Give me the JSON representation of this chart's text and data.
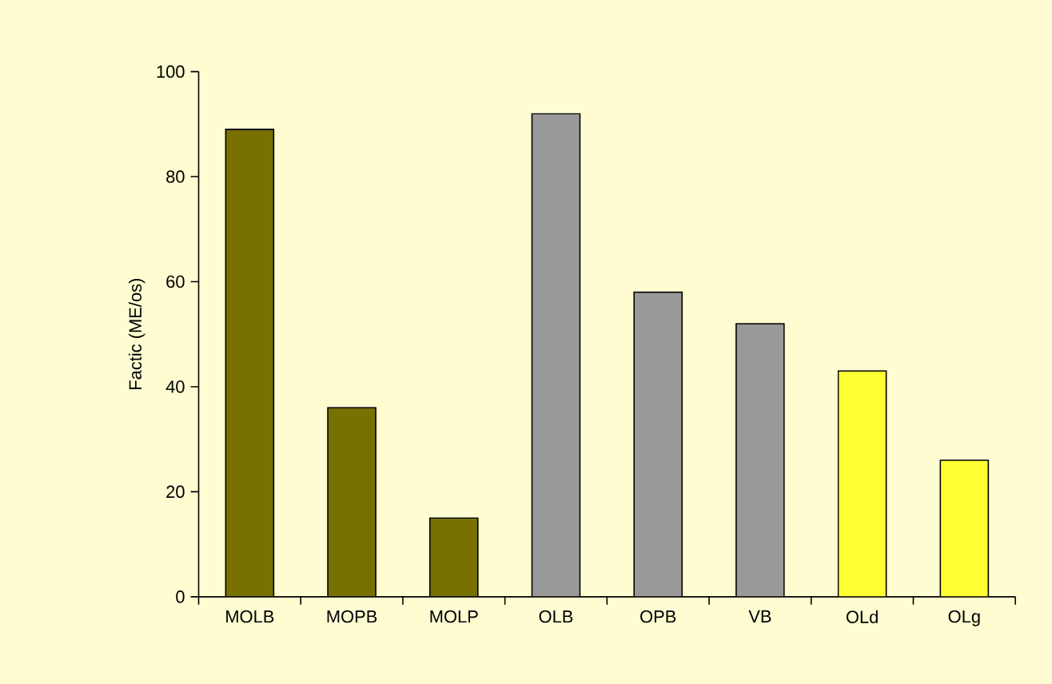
{
  "chart_data": {
    "type": "bar",
    "ylabel": "Factic (ME/os)",
    "categories": [
      "MOLB",
      "MOPB",
      "MOLP",
      "OLB",
      "OPB",
      "VB",
      "OLd",
      "OLg"
    ],
    "values": [
      89,
      36,
      15,
      92,
      58,
      52,
      43,
      26
    ],
    "colors": [
      "#787000",
      "#787000",
      "#787000",
      "#999999",
      "#999999",
      "#999999",
      "#ffff33",
      "#ffff33"
    ],
    "ylim": [
      0,
      100
    ],
    "yticks": [
      0,
      20,
      40,
      60,
      80,
      100
    ],
    "grid": false
  }
}
